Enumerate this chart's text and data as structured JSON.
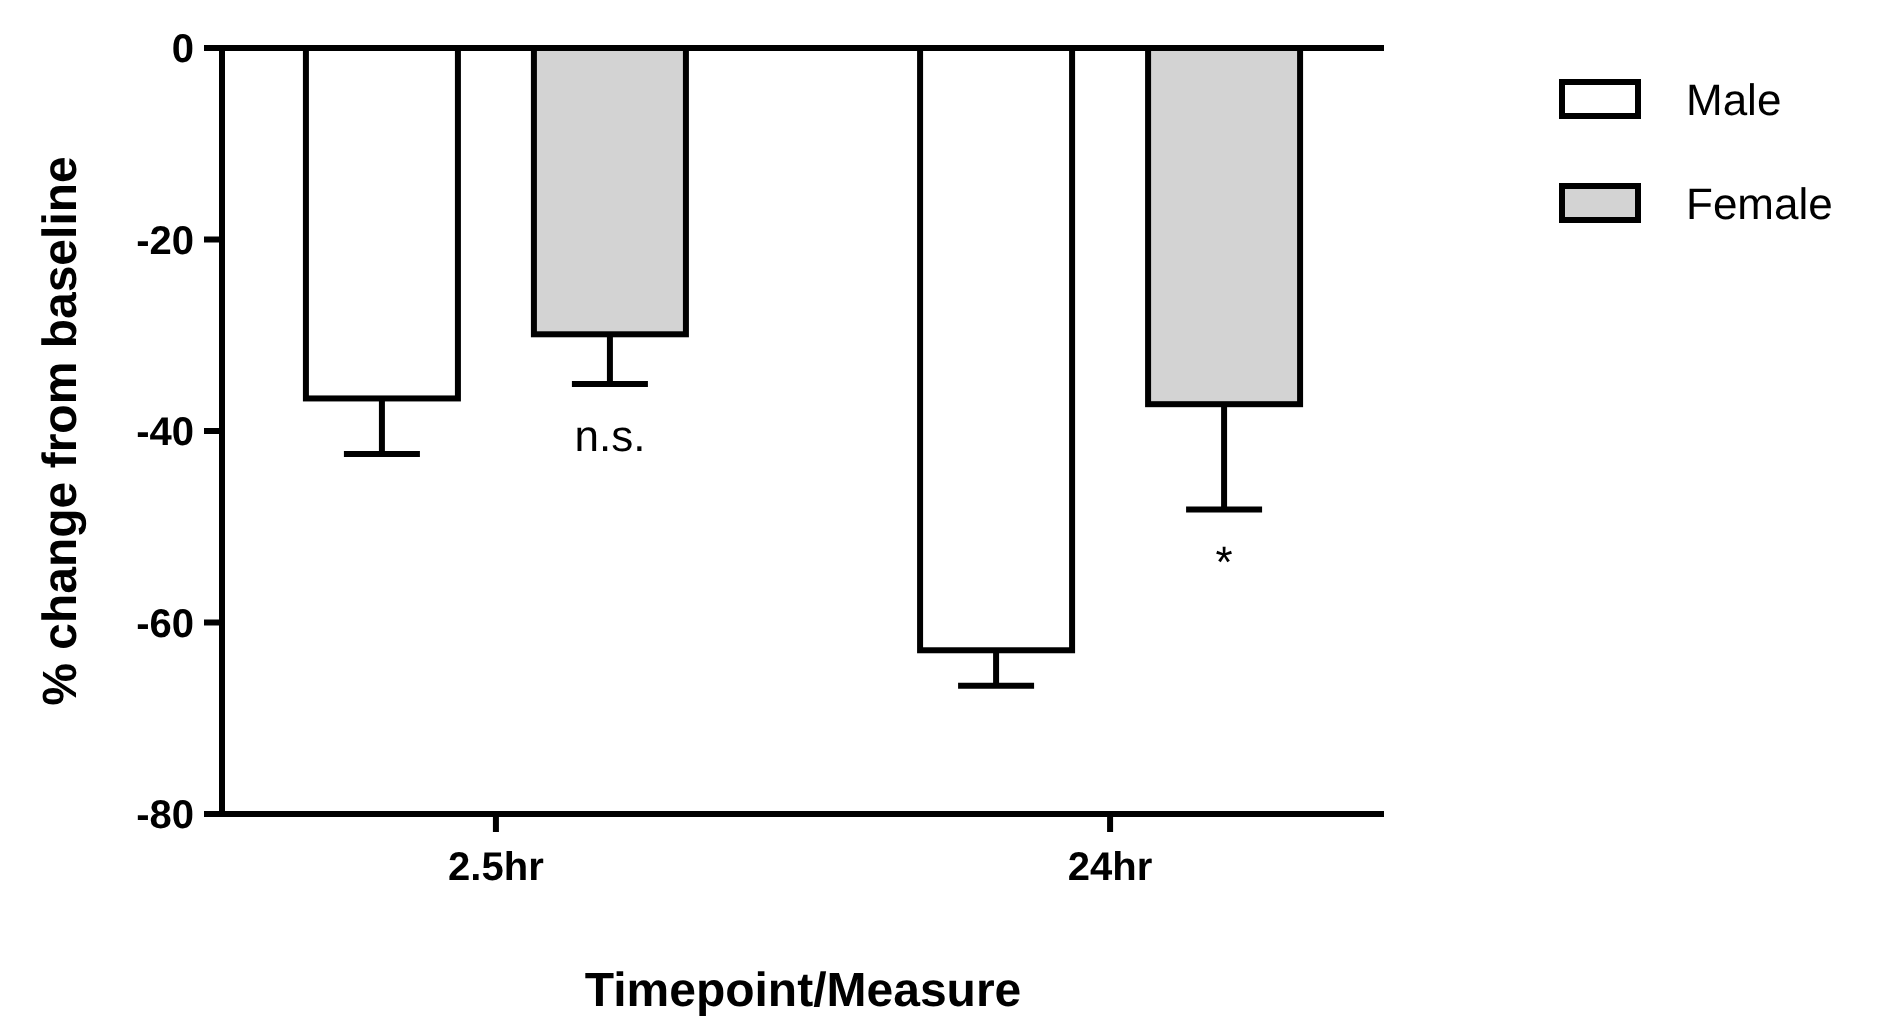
{
  "chart_data": {
    "type": "bar",
    "xlabel": "Timepoint/Measure",
    "ylabel": "% change from baseline",
    "categories": [
      "2.5hr",
      "24hr"
    ],
    "series": [
      {
        "name": "Male",
        "color": "#ffffff",
        "values": [
          -36.6,
          -62.9
        ],
        "errors": [
          [
            -42.4,
            -36.6
          ],
          [
            -66.6,
            -62.9
          ]
        ]
      },
      {
        "name": "Female",
        "color": "#d3d3d3",
        "values": [
          -29.9,
          -37.2
        ],
        "errors": [
          [
            -35.1,
            -29.9
          ],
          [
            -48.2,
            -37.2
          ]
        ]
      }
    ],
    "ylim": [
      -80,
      0
    ],
    "yticks": [
      -80,
      -60,
      -40,
      -20,
      0
    ],
    "grid": false,
    "legend": "top right",
    "annotations": [
      "n.s.",
      "*"
    ]
  }
}
